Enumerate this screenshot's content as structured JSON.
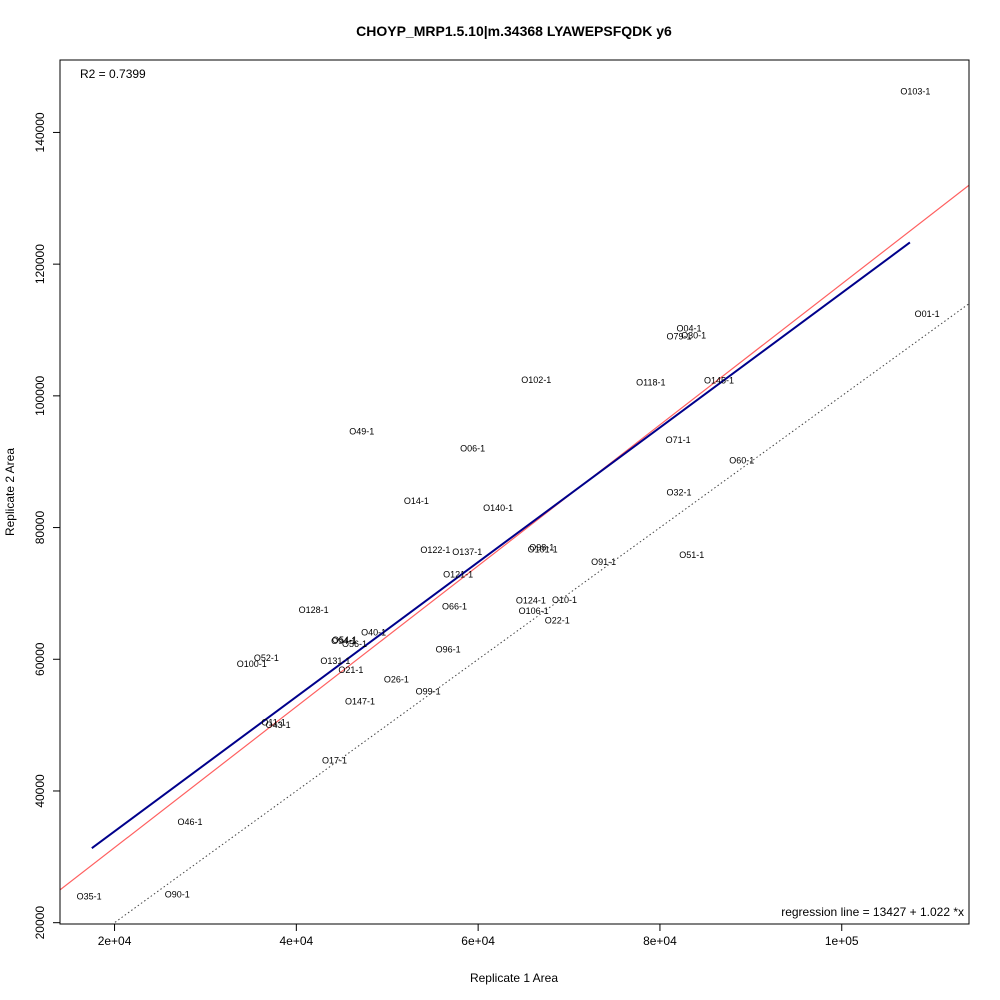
{
  "chart_data": {
    "type": "scatter",
    "title": "CHOYP_MRP1.5.10|m.34368 LYAWEPSFQDK y6",
    "xlabel": "Replicate 1 Area",
    "ylabel": "Replicate 2 Area",
    "xlim": [
      14000,
      114000
    ],
    "ylim": [
      19800,
      151000
    ],
    "x_ticks": [
      20000,
      40000,
      60000,
      80000,
      100000
    ],
    "x_tick_labels": [
      "2e+04",
      "4e+04",
      "6e+04",
      "8e+04",
      "1e+05"
    ],
    "y_ticks": [
      20000,
      40000,
      60000,
      80000,
      100000,
      120000,
      140000
    ],
    "y_tick_labels": [
      "20000",
      "40000",
      "60000",
      "80000",
      "100000",
      "120000",
      "140000"
    ],
    "r2_text": "R2 = 0.7399",
    "regression_text": "regression line = 13427 + 1.022 *x",
    "regression_line": {
      "intercept": 13427,
      "slope": 1.022,
      "x_range": [
        17500,
        107500
      ],
      "color": "#00008b"
    },
    "reference_line": {
      "intercept": 10000,
      "slope": 1.07,
      "color": "#ff6060"
    },
    "identity_line": {
      "intercept": 0,
      "slope": 1,
      "style": "dotted"
    },
    "points": [
      {
        "label": "O103-1",
        "x": 108100,
        "y": 146200
      },
      {
        "label": "O01-1",
        "x": 109400,
        "y": 112400
      },
      {
        "label": "O04-1",
        "x": 83200,
        "y": 110200
      },
      {
        "label": "O79-1",
        "x": 82100,
        "y": 109000
      },
      {
        "label": "O30-1",
        "x": 83700,
        "y": 109200
      },
      {
        "label": "O102-1",
        "x": 66400,
        "y": 102400
      },
      {
        "label": "O118-1",
        "x": 79000,
        "y": 102000
      },
      {
        "label": "O145-1",
        "x": 86500,
        "y": 102300
      },
      {
        "label": "O49-1",
        "x": 47200,
        "y": 94600
      },
      {
        "label": "O06-1",
        "x": 59400,
        "y": 92000
      },
      {
        "label": "O71-1",
        "x": 82000,
        "y": 93300
      },
      {
        "label": "O60-1",
        "x": 89000,
        "y": 90200
      },
      {
        "label": "O32-1",
        "x": 82100,
        "y": 85300
      },
      {
        "label": "O14-1",
        "x": 53200,
        "y": 84000
      },
      {
        "label": "O140-1",
        "x": 62200,
        "y": 83000
      },
      {
        "label": "O122-1",
        "x": 55300,
        "y": 76600
      },
      {
        "label": "O137-1",
        "x": 58800,
        "y": 76300
      },
      {
        "label": "O98-1",
        "x": 67000,
        "y": 77000
      },
      {
        "label": "O101-1",
        "x": 67100,
        "y": 76700
      },
      {
        "label": "O91-1",
        "x": 73800,
        "y": 74800
      },
      {
        "label": "O51-1",
        "x": 83500,
        "y": 75800
      },
      {
        "label": "O121-1",
        "x": 57800,
        "y": 72900
      },
      {
        "label": "O124-1",
        "x": 65800,
        "y": 68900
      },
      {
        "label": "O10-1",
        "x": 69500,
        "y": 69000
      },
      {
        "label": "O66-1",
        "x": 57400,
        "y": 68000
      },
      {
        "label": "O128-1",
        "x": 41900,
        "y": 67500
      },
      {
        "label": "O106-1",
        "x": 66100,
        "y": 67300
      },
      {
        "label": "O22-1",
        "x": 68700,
        "y": 65900
      },
      {
        "label": "O40-1",
        "x": 48500,
        "y": 64100
      },
      {
        "label": "O54-1",
        "x": 45300,
        "y": 62900
      },
      {
        "label": "O94-1",
        "x": 45200,
        "y": 62800
      },
      {
        "label": "O56-1",
        "x": 46400,
        "y": 62300
      },
      {
        "label": "O96-1",
        "x": 56700,
        "y": 61500
      },
      {
        "label": "O52-1",
        "x": 36700,
        "y": 60200
      },
      {
        "label": "O100-1",
        "x": 35100,
        "y": 59300
      },
      {
        "label": "O131-1",
        "x": 44300,
        "y": 59700
      },
      {
        "label": "O21-1",
        "x": 46000,
        "y": 58400
      },
      {
        "label": "O26-1",
        "x": 51000,
        "y": 56900
      },
      {
        "label": "O99-1",
        "x": 54500,
        "y": 55100
      },
      {
        "label": "O147-1",
        "x": 47000,
        "y": 53600
      },
      {
        "label": "O11-1",
        "x": 37500,
        "y": 50400
      },
      {
        "label": "O43-1",
        "x": 38000,
        "y": 50000
      },
      {
        "label": "O17-1",
        "x": 44200,
        "y": 44600
      },
      {
        "label": "O46-1",
        "x": 28300,
        "y": 35300
      },
      {
        "label": "O90-1",
        "x": 26900,
        "y": 24300
      },
      {
        "label": "O35-1",
        "x": 17200,
        "y": 24000
      }
    ]
  }
}
